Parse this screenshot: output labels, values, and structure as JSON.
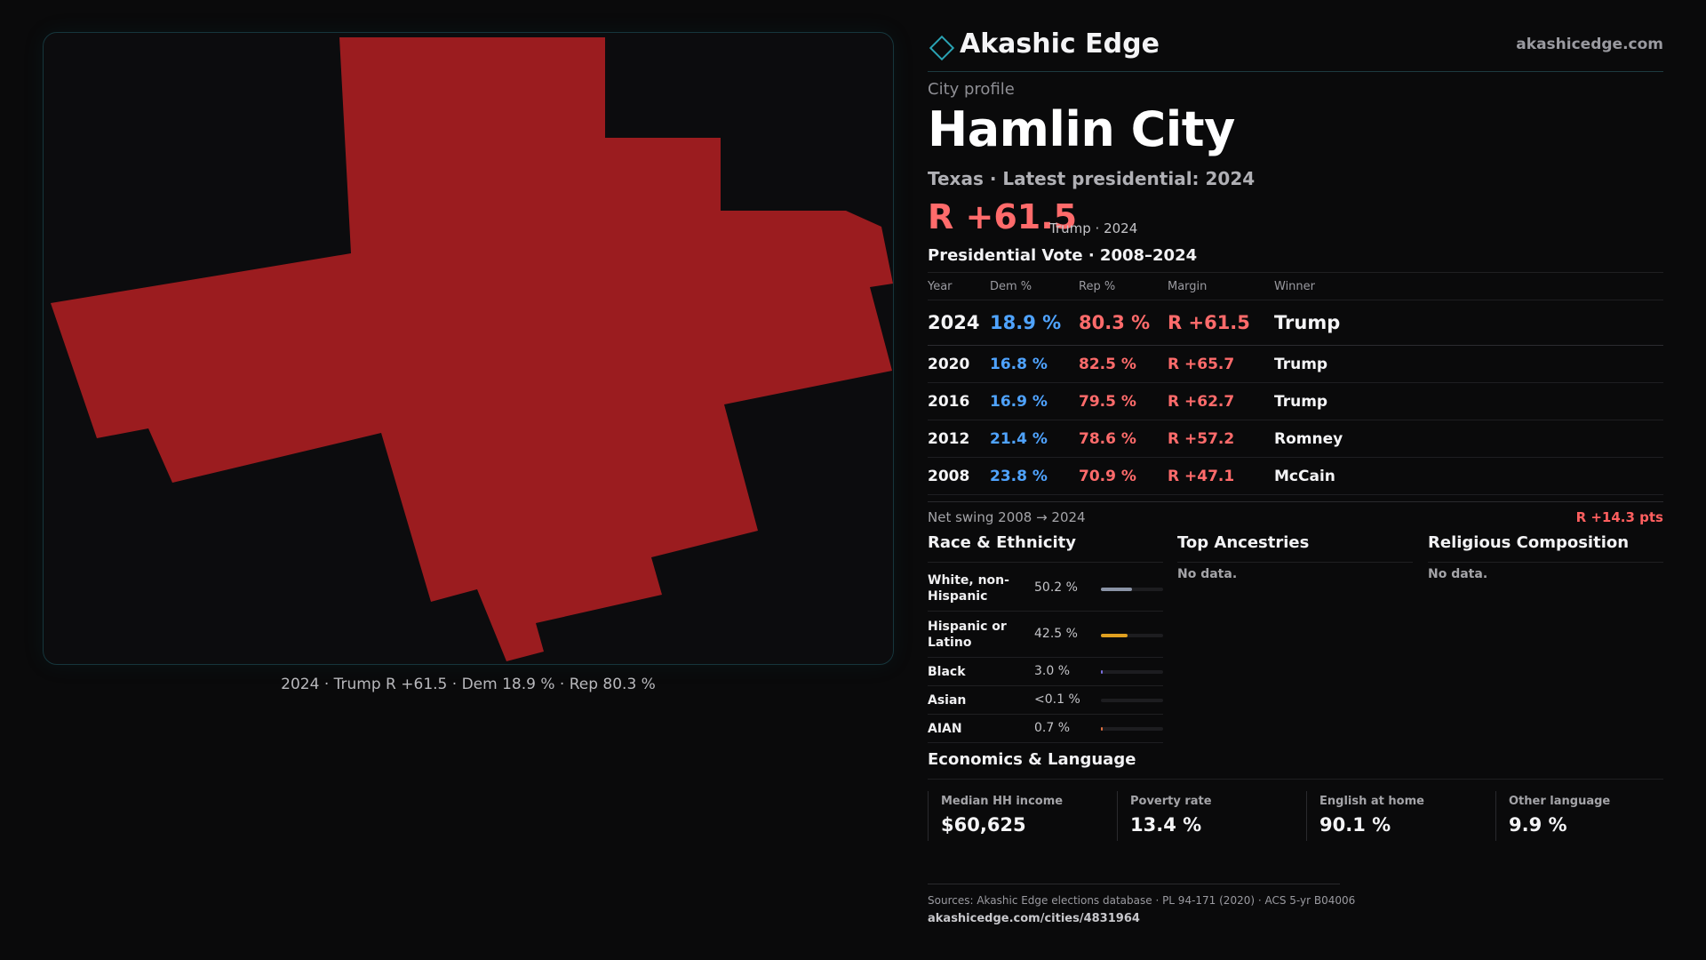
{
  "map": {
    "caption": "2024 · Trump R +61.5 · Dem 18.9 % · Rep 80.3 %",
    "fill_color": "#9b1c1f"
  },
  "brand": {
    "icon": "diamond-logo-icon",
    "name": "Akashic Edge",
    "url": "akashicedge.com"
  },
  "profile": {
    "eyebrow": "City profile",
    "city": "Hamlin City",
    "subtitle": "Texas · Latest presidential: 2024",
    "headline_margin": "R +61.5",
    "headline_note": "Trump · 2024"
  },
  "votes": {
    "title": "Presidential Vote · 2008–2024",
    "columns": {
      "year": "Year",
      "dem": "Dem %",
      "rep": "Rep %",
      "margin": "Margin",
      "winner": "Winner"
    },
    "rows": [
      {
        "year": "2024",
        "dem": "18.9 %",
        "rep": "80.3 %",
        "margin": "R +61.5",
        "winner": "Trump"
      },
      {
        "year": "2020",
        "dem": "16.8 %",
        "rep": "82.5 %",
        "margin": "R +65.7",
        "winner": "Trump"
      },
      {
        "year": "2016",
        "dem": "16.9 %",
        "rep": "79.5 %",
        "margin": "R +62.7",
        "winner": "Trump"
      },
      {
        "year": "2012",
        "dem": "21.4 %",
        "rep": "78.6 %",
        "margin": "R +57.2",
        "winner": "Romney"
      },
      {
        "year": "2008",
        "dem": "23.8 %",
        "rep": "70.9 %",
        "margin": "R +47.1",
        "winner": "McCain"
      }
    ],
    "swing_label": "Net swing 2008 → 2024",
    "swing_value": "R +14.3 pts"
  },
  "race": {
    "title": "Race & Ethnicity",
    "rows": [
      {
        "label": "White, non-Hispanic",
        "pct": "50.2 %",
        "fraction": 0.502,
        "color": "#8a93a6"
      },
      {
        "label": "Hispanic or Latino",
        "pct": "42.5 %",
        "fraction": 0.425,
        "color": "#e0a020"
      },
      {
        "label": "Black",
        "pct": "3.0 %",
        "fraction": 0.03,
        "color": "#7a6ee0"
      },
      {
        "label": "Asian",
        "pct": "<0.1 %",
        "fraction": 0.0,
        "color": "#40a0a0"
      },
      {
        "label": "AIAN",
        "pct": "0.7 %",
        "fraction": 0.007,
        "color": "#e07040"
      }
    ]
  },
  "ancestries": {
    "title": "Top Ancestries",
    "empty": "No data."
  },
  "religion": {
    "title": "Religious Composition",
    "empty": "No data."
  },
  "economics": {
    "title": "Economics & Language",
    "cells": [
      {
        "label": "Median HH income",
        "value": "$60,625"
      },
      {
        "label": "Poverty rate",
        "value": "13.4 %"
      },
      {
        "label": "English at home",
        "value": "90.1 %"
      },
      {
        "label": "Other language",
        "value": "9.9 %"
      }
    ]
  },
  "footer": {
    "sources": "Sources: Akashic Edge elections database · PL 94-171 (2020) · ACS 5-yr B04006",
    "url": "akashicedge.com/cities/4831964"
  }
}
